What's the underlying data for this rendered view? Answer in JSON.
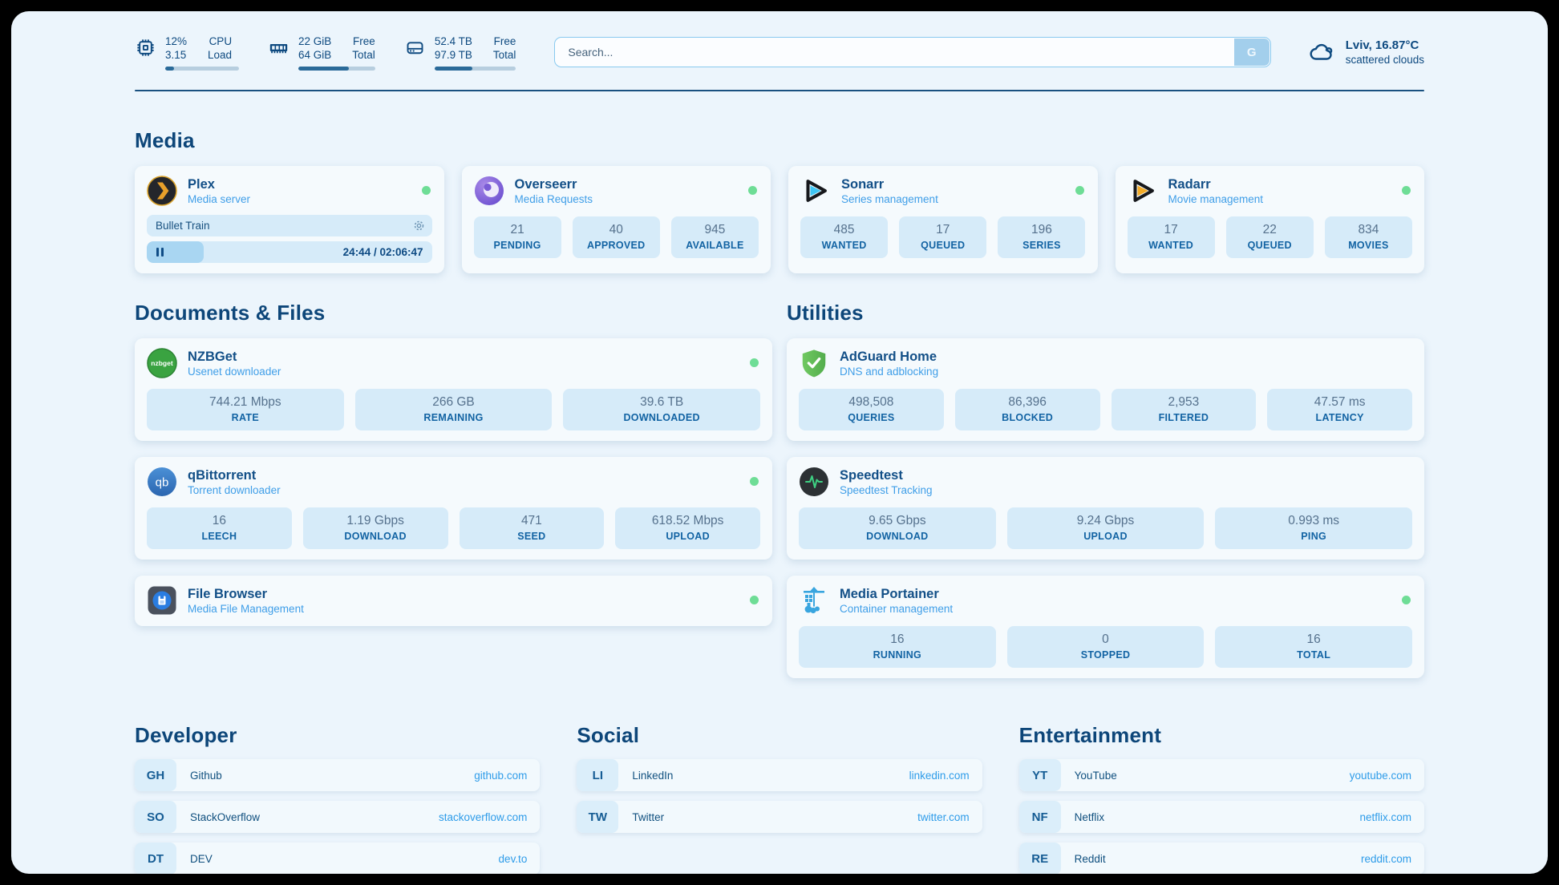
{
  "topbar": {
    "cpu": {
      "value_line1": "12%",
      "value_line2": "3.15",
      "label_line1": "CPU",
      "label_line2": "Load",
      "progress": 12
    },
    "ram": {
      "value_line1": "22 GiB",
      "value_line2": "64 GiB",
      "label_line1": "Free",
      "label_line2": "Total",
      "progress": 66
    },
    "disk": {
      "value_line1": "52.4 TB",
      "value_line2": "97.9 TB",
      "label_line1": "Free",
      "label_line2": "Total",
      "progress": 46
    },
    "search": {
      "placeholder": "Search...",
      "button": "G"
    },
    "weather": {
      "location": "Lviv, 16.87°C",
      "condition": "scattered clouds"
    }
  },
  "sections": {
    "media": {
      "title": "Media",
      "plex": {
        "name": "Plex",
        "description": "Media server",
        "now_playing": "Bullet Train",
        "time": "24:44 / 02:06:47",
        "progress": 20
      },
      "overseerr": {
        "name": "Overseerr",
        "description": "Media Requests",
        "stats": [
          {
            "value": "21",
            "label": "PENDING"
          },
          {
            "value": "40",
            "label": "APPROVED"
          },
          {
            "value": "945",
            "label": "AVAILABLE"
          }
        ]
      },
      "sonarr": {
        "name": "Sonarr",
        "description": "Series management",
        "stats": [
          {
            "value": "485",
            "label": "WANTED"
          },
          {
            "value": "17",
            "label": "QUEUED"
          },
          {
            "value": "196",
            "label": "SERIES"
          }
        ]
      },
      "radarr": {
        "name": "Radarr",
        "description": "Movie management",
        "stats": [
          {
            "value": "17",
            "label": "WANTED"
          },
          {
            "value": "22",
            "label": "QUEUED"
          },
          {
            "value": "834",
            "label": "MOVIES"
          }
        ]
      }
    },
    "documents": {
      "title": "Documents & Files",
      "nzbget": {
        "name": "NZBGet",
        "description": "Usenet downloader",
        "stats": [
          {
            "value": "744.21 Mbps",
            "label": "RATE"
          },
          {
            "value": "266 GB",
            "label": "REMAINING"
          },
          {
            "value": "39.6 TB",
            "label": "DOWNLOADED"
          }
        ]
      },
      "qbittorrent": {
        "name": "qBittorrent",
        "description": "Torrent downloader",
        "stats": [
          {
            "value": "16",
            "label": "LEECH"
          },
          {
            "value": "1.19 Gbps",
            "label": "DOWNLOAD"
          },
          {
            "value": "471",
            "label": "SEED"
          },
          {
            "value": "618.52 Mbps",
            "label": "UPLOAD"
          }
        ]
      },
      "filebrowser": {
        "name": "File Browser",
        "description": "Media File Management"
      }
    },
    "utilities": {
      "title": "Utilities",
      "adguard": {
        "name": "AdGuard Home",
        "description": "DNS and adblocking",
        "stats": [
          {
            "value": "498,508",
            "label": "QUERIES"
          },
          {
            "value": "86,396",
            "label": "BLOCKED"
          },
          {
            "value": "2,953",
            "label": "FILTERED"
          },
          {
            "value": "47.57 ms",
            "label": "LATENCY"
          }
        ]
      },
      "speedtest": {
        "name": "Speedtest",
        "description": "Speedtest Tracking",
        "stats": [
          {
            "value": "9.65 Gbps",
            "label": "DOWNLOAD"
          },
          {
            "value": "9.24 Gbps",
            "label": "UPLOAD"
          },
          {
            "value": "0.993 ms",
            "label": "PING"
          }
        ]
      },
      "portainer": {
        "name": "Media Portainer",
        "description": "Container management",
        "stats": [
          {
            "value": "16",
            "label": "RUNNING"
          },
          {
            "value": "0",
            "label": "STOPPED"
          },
          {
            "value": "16",
            "label": "TOTAL"
          }
        ]
      }
    },
    "bookmarks": [
      {
        "title": "Developer",
        "links": [
          {
            "abbr": "GH",
            "name": "Github",
            "url": "github.com"
          },
          {
            "abbr": "SO",
            "name": "StackOverflow",
            "url": "stackoverflow.com"
          },
          {
            "abbr": "DT",
            "name": "DEV",
            "url": "dev.to"
          }
        ]
      },
      {
        "title": "Social",
        "links": [
          {
            "abbr": "LI",
            "name": "LinkedIn",
            "url": "linkedin.com"
          },
          {
            "abbr": "TW",
            "name": "Twitter",
            "url": "twitter.com"
          }
        ]
      },
      {
        "title": "Entertainment",
        "links": [
          {
            "abbr": "YT",
            "name": "YouTube",
            "url": "youtube.com"
          },
          {
            "abbr": "NF",
            "name": "Netflix",
            "url": "netflix.com"
          },
          {
            "abbr": "RE",
            "name": "Reddit",
            "url": "reddit.com"
          }
        ]
      }
    ]
  },
  "colors": {
    "accent": "#1a5180",
    "status_online": "#6edd96",
    "link": "#2e9ce9",
    "stat_bg": "#d6ebf9"
  }
}
